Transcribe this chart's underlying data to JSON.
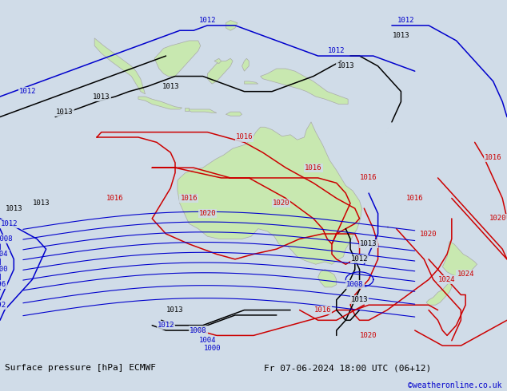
{
  "bg_color": "#d0dce8",
  "land_color": "#c8e8b0",
  "land_edge": "#aaaaaa",
  "fig_width": 6.34,
  "fig_height": 4.9,
  "dpi": 100,
  "bottom_left_text": "Surface pressure [hPa] ECMWF",
  "bottom_right_text": "Fr 07-06-2024 18:00 UTC (06+12)",
  "bottom_credit": "©weatheronline.co.uk",
  "bottom_left_color": "#000000",
  "bottom_right_color": "#000000",
  "credit_color": "#0000cc",
  "bottom_bar_color": "#ffffff",
  "bottom_bar_height": 0.09
}
